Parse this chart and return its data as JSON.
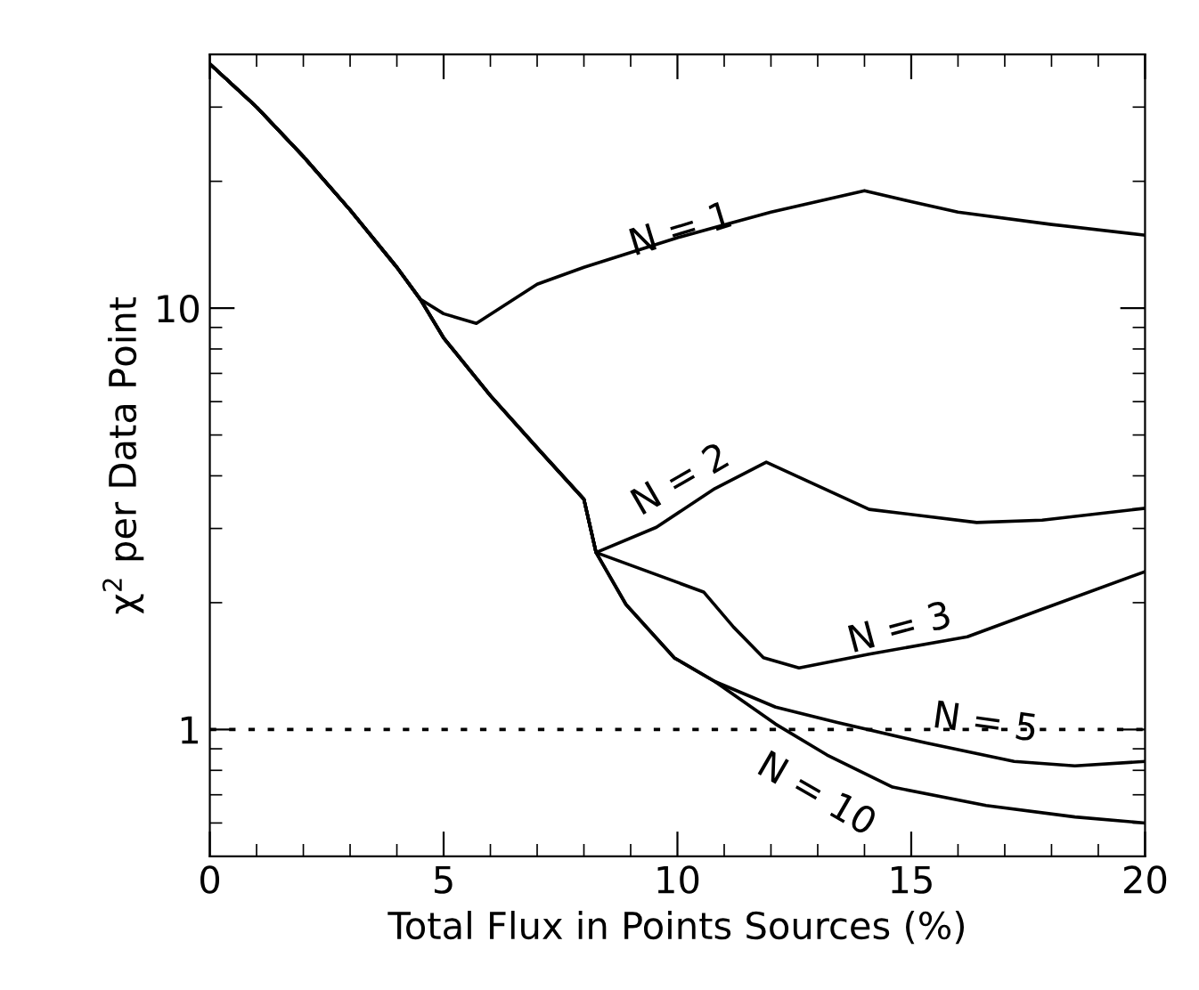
{
  "chart_data": {
    "type": "line",
    "xlabel": "Total Flux in Points Sources (%)",
    "ylabel": "χ$^{2}$ per Data Point",
    "log": "y",
    "xlim": [
      0,
      20
    ],
    "xticks": [
      0,
      5,
      10,
      15,
      20
    ],
    "ylim": [
      0.5,
      40
    ],
    "yticks": [
      1,
      10
    ],
    "grid": false,
    "line_style": "solid",
    "marker": "none",
    "series": [
      {
        "color": "#000000",
        "x": [
          0,
          1,
          2,
          3,
          4,
          4.5,
          5,
          5.7,
          7,
          8,
          10,
          12,
          14,
          15,
          16,
          18,
          20
        ],
        "values": [
          38,
          30,
          22.9,
          17.1,
          12.5,
          10.5,
          9.7,
          9.2,
          11.4,
          12.5,
          14.7,
          16.9,
          19.0,
          17.9,
          16.9,
          15.8,
          14.9
        ]
      },
      {
        "color": "#000000",
        "x": [
          0,
          1,
          2,
          3,
          4,
          4.5,
          5,
          6,
          7,
          8,
          8.26,
          9.55,
          10.8,
          11.9,
          14.1,
          16.4,
          17.8,
          20
        ],
        "values": [
          38,
          30,
          22.9,
          17.1,
          12.5,
          10.5,
          8.5,
          6.2,
          4.66,
          3.52,
          2.63,
          3.02,
          3.73,
          4.31,
          3.33,
          3.1,
          3.14,
          3.35
        ]
      },
      {
        "color": "#000000",
        "x": [
          0,
          1,
          2,
          3,
          4,
          4.5,
          5,
          6,
          7,
          8,
          8.26,
          10.56,
          11.2,
          11.84,
          12.6,
          14.1,
          16.2,
          17.8,
          20
        ],
        "values": [
          38,
          30,
          22.9,
          17.1,
          12.5,
          10.5,
          8.5,
          6.2,
          4.66,
          3.52,
          2.63,
          2.12,
          1.75,
          1.48,
          1.4,
          1.51,
          1.66,
          1.93,
          2.37
        ]
      },
      {
        "color": "#000000",
        "x": [
          0,
          1,
          2,
          3,
          4,
          4.5,
          5,
          6,
          7,
          8,
          8.26,
          8.9,
          9.93,
          10.8,
          12.1,
          13.4,
          15.3,
          17.2,
          18.5,
          20
        ],
        "values": [
          38,
          30,
          22.9,
          17.1,
          12.5,
          10.5,
          8.5,
          6.2,
          4.66,
          3.52,
          2.63,
          1.98,
          1.48,
          1.3,
          1.13,
          1.04,
          0.93,
          0.84,
          0.82,
          0.84
        ]
      },
      {
        "color": "#000000",
        "x": [
          0,
          1,
          2,
          3,
          4,
          4.5,
          5,
          6,
          7,
          8,
          8.26,
          8.9,
          9.93,
          10.8,
          12.1,
          13.2,
          14.6,
          16.6,
          18.5,
          20
        ],
        "values": [
          38,
          30,
          22.9,
          17.1,
          12.5,
          10.5,
          8.5,
          6.2,
          4.66,
          3.52,
          2.63,
          1.98,
          1.48,
          1.3,
          1.03,
          0.87,
          0.73,
          0.66,
          0.62,
          0.6
        ]
      }
    ],
    "ref_lines": [
      {
        "axis": "y",
        "value": 1,
        "color": "#000000",
        "line_style": "dotted"
      }
    ],
    "annotations": [
      "N = 1",
      "N = 2",
      "N = 3",
      "N = 5",
      "N = 10"
    ]
  }
}
